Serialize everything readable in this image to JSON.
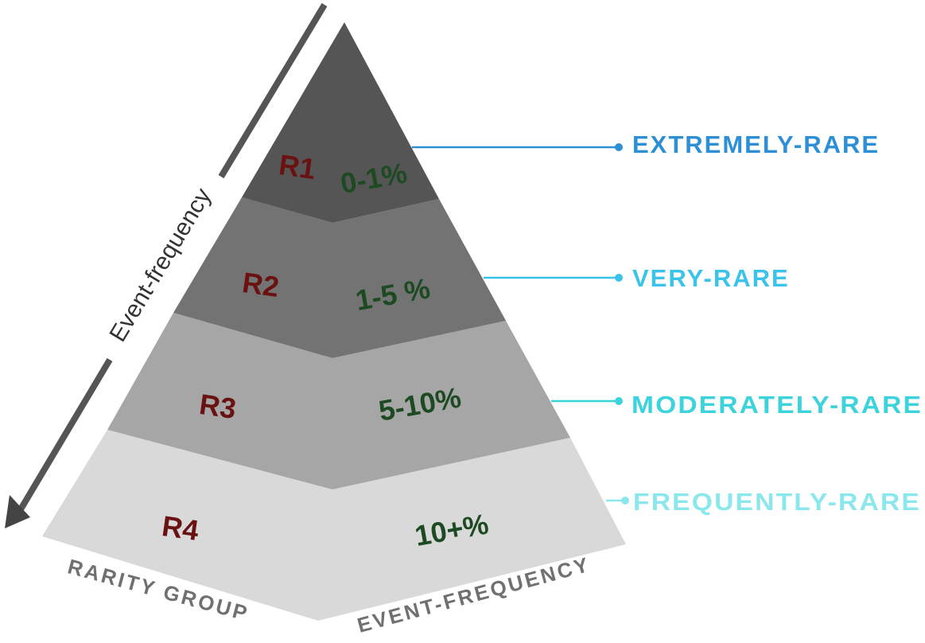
{
  "axis_label": "Event-frequency",
  "base_labels": {
    "left": "RARITY GROUP",
    "right": "EVENT-FREQUENCY"
  },
  "tiers": [
    {
      "group": "R1",
      "frequency": "0-1%",
      "category": "EXTREMELY-RARE",
      "category_color": "#2d8fd6",
      "tier_color": "#555555"
    },
    {
      "group": "R2",
      "frequency": "1-5 %",
      "category": "VERY-RARE",
      "category_color": "#3bc3ea",
      "tier_color": "#737373"
    },
    {
      "group": "R3",
      "frequency": "5-10%",
      "category": "MODERATELY-RARE",
      "category_color": "#3cd3dc",
      "tier_color": "#a6a6a6"
    },
    {
      "group": "R4",
      "frequency": "10+%",
      "category": "FREQUENTLY-RARE",
      "category_color": "#8ae8ec",
      "tier_color": "#d9d9d9"
    }
  ]
}
